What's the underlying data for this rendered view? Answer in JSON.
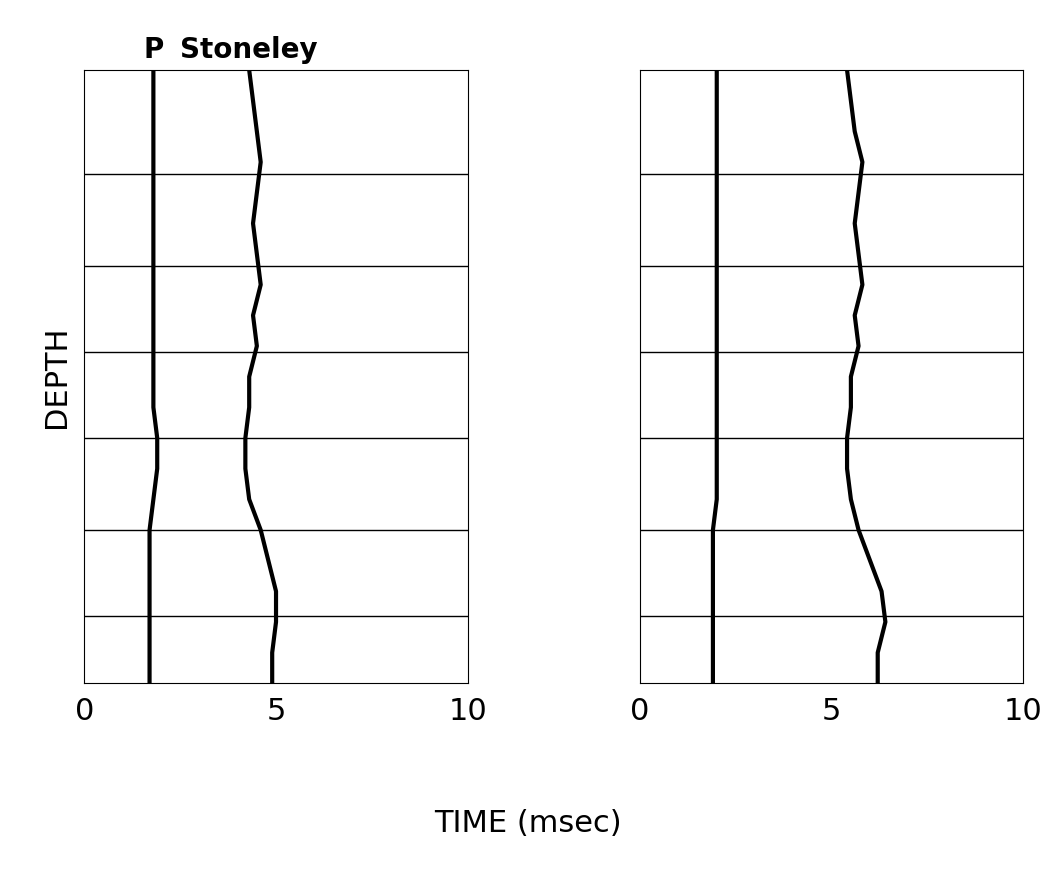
{
  "x_label": "TIME (msec)",
  "y_label": "DEPTH",
  "chart_data": [
    {
      "type": "line",
      "xlim": [
        0,
        10
      ],
      "xticks": [
        0,
        5,
        10
      ],
      "ylim": [
        100,
        0
      ],
      "yticks": [
        17,
        32,
        46,
        60,
        75,
        89
      ],
      "grid": true,
      "tick_labels": "x",
      "depth": [
        0,
        5,
        10,
        15,
        20,
        25,
        30,
        35,
        40,
        45,
        50,
        55,
        60,
        65,
        70,
        75,
        80,
        85,
        90,
        95,
        100
      ],
      "series": [
        {
          "name": "P",
          "color": "#000000",
          "line_style": "solid",
          "values": [
            1.8,
            1.8,
            1.8,
            1.8,
            1.8,
            1.8,
            1.8,
            1.8,
            1.8,
            1.8,
            1.8,
            1.8,
            1.9,
            1.9,
            1.8,
            1.7,
            1.7,
            1.7,
            1.7,
            1.7,
            1.7
          ]
        },
        {
          "name": "Stoneley",
          "color": "#000000",
          "line_style": "solid",
          "values": [
            4.3,
            4.4,
            4.5,
            4.6,
            4.5,
            4.4,
            4.5,
            4.6,
            4.4,
            4.5,
            4.3,
            4.3,
            4.2,
            4.2,
            4.3,
            4.6,
            4.8,
            5.0,
            5.0,
            4.9,
            4.9
          ]
        }
      ]
    },
    {
      "type": "line",
      "xlim": [
        0,
        10
      ],
      "xticks": [
        0,
        5,
        10
      ],
      "ylim": [
        100,
        0
      ],
      "yticks": [
        17,
        32,
        46,
        60,
        75,
        89
      ],
      "grid": true,
      "tick_labels": "x",
      "depth": [
        0,
        5,
        10,
        15,
        20,
        25,
        30,
        35,
        40,
        45,
        50,
        55,
        60,
        65,
        70,
        75,
        80,
        85,
        90,
        95,
        100
      ],
      "series": [
        {
          "color": "#000000",
          "line_style": "solid",
          "values": [
            2.0,
            2.0,
            2.0,
            2.0,
            2.0,
            2.0,
            2.0,
            2.0,
            2.0,
            2.0,
            2.0,
            2.0,
            2.0,
            2.0,
            2.0,
            1.9,
            1.9,
            1.9,
            1.9,
            1.9,
            1.9
          ]
        },
        {
          "color": "#000000",
          "line_style": "solid",
          "values": [
            5.4,
            5.5,
            5.6,
            5.8,
            5.7,
            5.6,
            5.7,
            5.8,
            5.6,
            5.7,
            5.5,
            5.5,
            5.4,
            5.4,
            5.5,
            5.7,
            6.0,
            6.3,
            6.4,
            6.2,
            6.2
          ]
        }
      ]
    }
  ]
}
